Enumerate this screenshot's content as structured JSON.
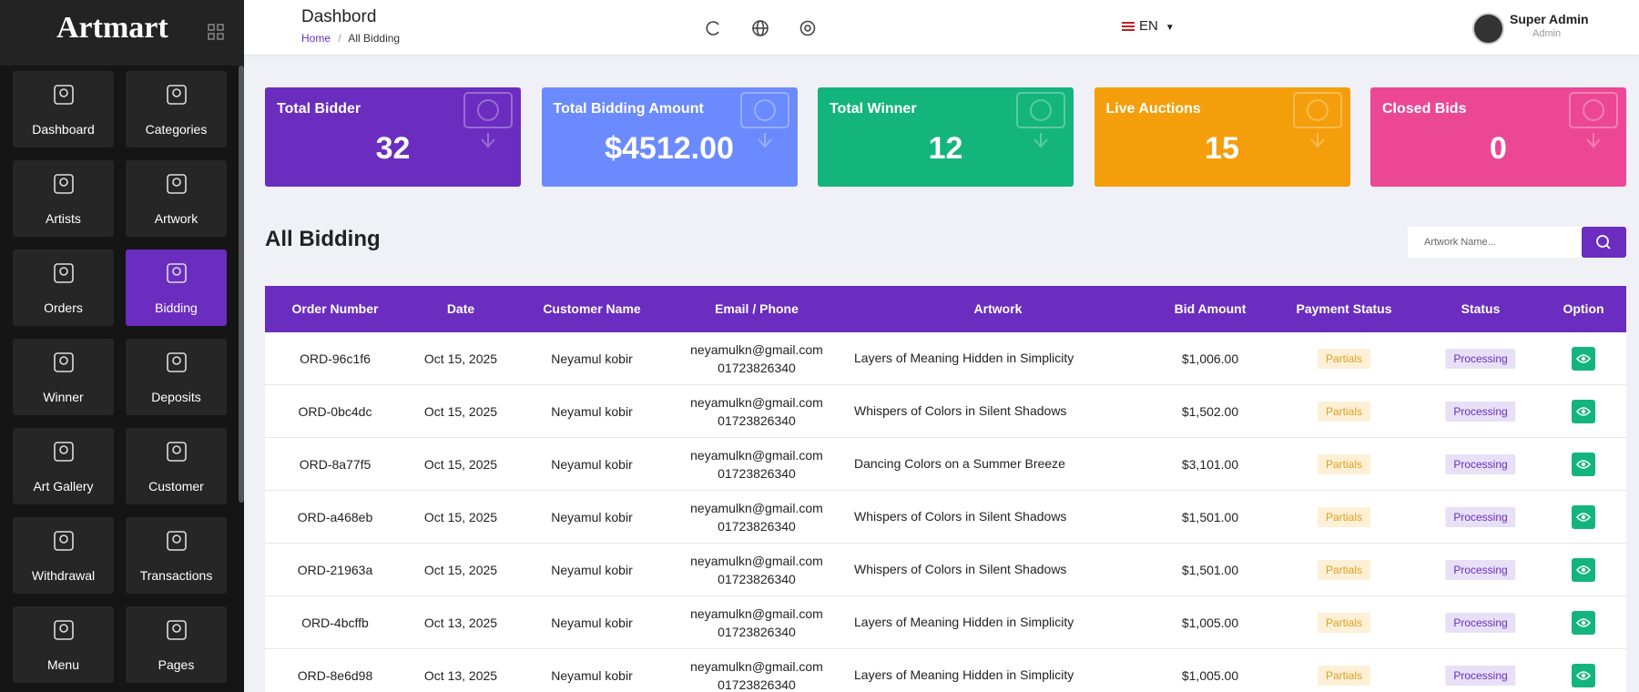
{
  "brand": "Artmart",
  "sidebar": {
    "menu": [
      "Dashboard",
      "Categories",
      "Artists",
      "Artwork",
      "Orders",
      "Bidding",
      "Winner",
      "Deposits",
      "Art Gallery",
      "Customer",
      "Withdrawal",
      "Transactions",
      "Menu",
      "Pages"
    ]
  },
  "header": {
    "title": "Dashbord",
    "breadcrumb": [
      "Home",
      "/",
      "All Bidding"
    ],
    "language": "EN",
    "user_name": "Super Admin",
    "user_role": "Admin"
  },
  "stats": [
    {
      "label": "Total Bidder",
      "value": "32",
      "color": "#6a2dbf"
    },
    {
      "label": "Total Bidding Amount",
      "value": "$4512.00",
      "color": "#6b8afd"
    },
    {
      "label": "Total Winner",
      "value": "12",
      "color": "#13b57d"
    },
    {
      "label": "Live Auctions",
      "value": "15",
      "color": "#f59e0b"
    },
    {
      "label": "Closed Bids",
      "value": "0",
      "color": "#ec4795"
    }
  ],
  "section_title": "All Bidding",
  "search_placeholder": "Artwork Name...",
  "table": {
    "columns": [
      "Order Number",
      "Date",
      "Customer Name",
      "Email / Phone",
      "Artwork",
      "Bid Amount",
      "Payment Status",
      "Status",
      "Option"
    ],
    "rows": [
      [
        "ORD-96c1f6",
        "Oct 15, 2025",
        "Neyamul kobir",
        "neyamulkn@gmail.com",
        "01723826340",
        "Layers of Meaning Hidden in Simplicity",
        "$1,006.00",
        "Partials",
        "Processing"
      ],
      [
        "ORD-0bc4dc",
        "Oct 15, 2025",
        "Neyamul kobir",
        "neyamulkn@gmail.com",
        "01723826340",
        "Whispers of Colors in Silent Shadows",
        "$1,502.00",
        "Partials",
        "Processing"
      ],
      [
        "ORD-8a77f5",
        "Oct 15, 2025",
        "Neyamul kobir",
        "neyamulkn@gmail.com",
        "01723826340",
        "Dancing Colors on a Summer Breeze",
        "$3,101.00",
        "Partials",
        "Processing"
      ],
      [
        "ORD-a468eb",
        "Oct 15, 2025",
        "Neyamul kobir",
        "neyamulkn@gmail.com",
        "01723826340",
        "Whispers of Colors in Silent Shadows",
        "$1,501.00",
        "Partials",
        "Processing"
      ],
      [
        "ORD-21963a",
        "Oct 15, 2025",
        "Neyamul kobir",
        "neyamulkn@gmail.com",
        "01723826340",
        "Whispers of Colors in Silent Shadows",
        "$1,501.00",
        "Partials",
        "Processing"
      ],
      [
        "ORD-4bcffb",
        "Oct 13, 2025",
        "Neyamul kobir",
        "neyamulkn@gmail.com",
        "01723826340",
        "Layers of Meaning Hidden in Simplicity",
        "$1,005.00",
        "Partials",
        "Processing"
      ],
      [
        "ORD-8e6d98",
        "Oct 13, 2025",
        "Neyamul kobir",
        "neyamulkn@gmail.com",
        "01723826340",
        "Layers of Meaning Hidden in Simplicity",
        "$1,005.00",
        "Partials",
        "Processing"
      ]
    ]
  }
}
